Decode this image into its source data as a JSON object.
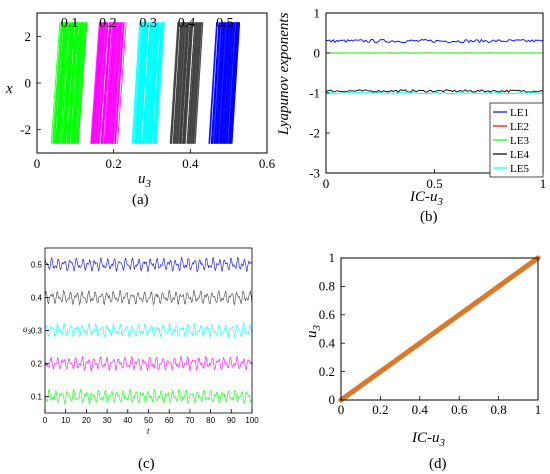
{
  "chart_data": [
    {
      "id": "a",
      "type": "scatter",
      "caption": "(a)",
      "xlabel_base": "u",
      "xlabel_sub": "3",
      "ylabel": "x",
      "xlim": [
        0,
        0.6
      ],
      "ylim": [
        -3,
        3
      ],
      "xticks": [
        "0",
        "0.2",
        "0.4",
        "0.6"
      ],
      "yticks": [
        "2",
        "0",
        "-2"
      ],
      "ytick_values": [
        2,
        0,
        -2
      ],
      "xtick_values": [
        0,
        0.2,
        0.4,
        0.6
      ],
      "series": [
        {
          "label": "0.1",
          "u3_range": [
            0.04,
            0.13
          ],
          "x_range": [
            -2.6,
            2.6
          ],
          "color": "#00ff00"
        },
        {
          "label": "0.2",
          "u3_range": [
            0.14,
            0.23
          ],
          "x_range": [
            -2.6,
            2.6
          ],
          "color": "#ff00ff"
        },
        {
          "label": "0.3",
          "u3_range": [
            0.25,
            0.33
          ],
          "x_range": [
            -2.6,
            2.6
          ],
          "color": "#00ffff"
        },
        {
          "label": "0.4",
          "u3_range": [
            0.35,
            0.43
          ],
          "x_range": [
            -2.6,
            2.6
          ],
          "color": "#404040"
        },
        {
          "label": "0.5",
          "u3_range": [
            0.45,
            0.53
          ],
          "x_range": [
            -2.6,
            2.6
          ],
          "color": "#0000ff"
        }
      ]
    },
    {
      "id": "b",
      "type": "line",
      "caption": "(b)",
      "xlabel_base": "IC-u",
      "xlabel_sub": "3",
      "ylabel": "Lyapunov exponents",
      "xlim": [
        0,
        1
      ],
      "ylim": [
        -3,
        1
      ],
      "xticks": [
        "0",
        "0.5",
        "1"
      ],
      "xtick_values": [
        0,
        0.5,
        1
      ],
      "yticks": [
        "1",
        "0",
        "-1",
        "-2",
        "-3"
      ],
      "ytick_values": [
        1,
        0,
        -1,
        -2,
        -3
      ],
      "legend_position": "bottom-right",
      "series": [
        {
          "name": "LE1",
          "value": 0.3,
          "noise": 0.04,
          "color": "#0000ff"
        },
        {
          "name": "LE2",
          "value": 0.0,
          "noise": 0.0,
          "color": "#ff0000"
        },
        {
          "name": "LE3",
          "value": 0.0,
          "noise": 0.005,
          "color": "#00ff00"
        },
        {
          "name": "LE4",
          "value": -0.95,
          "noise": 0.03,
          "color": "#000000"
        },
        {
          "name": "LE5",
          "value": -1.0,
          "noise": 0.02,
          "color": "#00ffff"
        }
      ]
    },
    {
      "id": "c",
      "type": "line",
      "caption": "(c)",
      "xlabel": "t",
      "ylabel_base": "u",
      "ylabel_sub": "3",
      "xlim": [
        0,
        100
      ],
      "ylim": [
        0.05,
        0.55
      ],
      "xticks": [
        "0",
        "10",
        "20",
        "30",
        "40",
        "50",
        "60",
        "70",
        "80",
        "90",
        "100"
      ],
      "xtick_values": [
        0,
        10,
        20,
        30,
        40,
        50,
        60,
        70,
        80,
        90,
        100
      ],
      "yticks": [
        "0.5",
        "0.4",
        "0.3",
        "0.2",
        "0.1"
      ],
      "ytick_values": [
        0.5,
        0.4,
        0.3,
        0.2,
        0.1
      ],
      "series": [
        {
          "mean": 0.5,
          "amplitude": 0.02,
          "color": "#0000ff"
        },
        {
          "mean": 0.4,
          "amplitude": 0.02,
          "color": "#404040"
        },
        {
          "mean": 0.3,
          "amplitude": 0.02,
          "color": "#00ffff"
        },
        {
          "mean": 0.2,
          "amplitude": 0.02,
          "color": "#ff00ff"
        },
        {
          "mean": 0.1,
          "amplitude": 0.02,
          "color": "#00ff00"
        }
      ]
    },
    {
      "id": "d",
      "type": "scatter",
      "caption": "(d)",
      "xlabel_base": "IC-u",
      "xlabel_sub": "3",
      "ylabel_base": "u",
      "ylabel_sub": "3",
      "xlim": [
        0,
        1
      ],
      "ylim": [
        0,
        1
      ],
      "xticks": [
        "0",
        "0.2",
        "0.4",
        "0.6",
        "0.8",
        "1"
      ],
      "xtick_values": [
        0,
        0.2,
        0.4,
        0.6,
        0.8,
        1
      ],
      "yticks": [
        "1",
        "0.8",
        "0.6",
        "0.4",
        "0.2",
        "0"
      ],
      "ytick_values": [
        1,
        0.8,
        0.6,
        0.4,
        0.2,
        0
      ],
      "series": [
        {
          "x_range": [
            0,
            1
          ],
          "slope": 1,
          "intercept": 0,
          "color": "#d97a2b"
        }
      ]
    }
  ]
}
